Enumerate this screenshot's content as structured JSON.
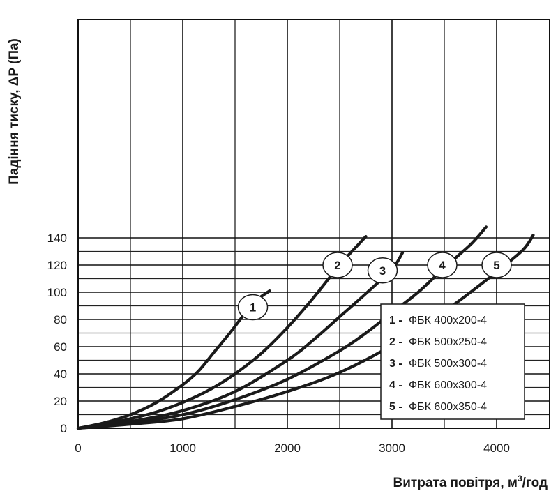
{
  "chart_data": {
    "type": "line",
    "title": "",
    "xlabel": "Витрата повітря, м",
    "xlabel_sup": "3",
    "xlabel_tail": "/год",
    "ylabel": "Падіння тиску, ΔP (Па)",
    "xlim": [
      0,
      4500
    ],
    "ylim": [
      0,
      150
    ],
    "x_ticks": [
      0,
      1000,
      2000,
      3000,
      4000
    ],
    "x_tick_labels": [
      "0",
      "1000",
      "2000",
      "3000",
      "4000"
    ],
    "y_ticks": [
      0,
      20,
      40,
      60,
      80,
      100,
      120,
      140
    ],
    "y_tick_labels": [
      "0",
      "20",
      "40",
      "60",
      "80",
      "100",
      "120",
      "140"
    ],
    "grid": true,
    "legend_position": "bottom-right",
    "series": [
      {
        "name": "1",
        "legend_prefix": "1 -",
        "legend_text": "ФБК 400x200-4",
        "x": [
          0,
          250,
          500,
          750,
          1000,
          1150,
          1300,
          1450,
          1600,
          1720,
          1830
        ],
        "y": [
          0,
          4,
          10,
          19,
          32,
          42,
          56,
          70,
          85,
          95,
          101
        ]
      },
      {
        "name": "2",
        "legend_prefix": "2 -",
        "legend_text": "ФБК 500x250-4",
        "x": [
          0,
          250,
          500,
          750,
          1000,
          1250,
          1500,
          1750,
          2000,
          2250,
          2500,
          2750
        ],
        "y": [
          0,
          3,
          7,
          12,
          19,
          28,
          40,
          55,
          74,
          96,
          120,
          141
        ]
      },
      {
        "name": "3",
        "legend_prefix": "3 -",
        "legend_text": "ФБК 500x300-4",
        "x": [
          0,
          500,
          1000,
          1500,
          2000,
          2250,
          2500,
          2750,
          3000,
          3100
        ],
        "y": [
          0,
          5,
          13,
          27,
          50,
          65,
          82,
          99,
          117,
          129
        ]
      },
      {
        "name": "4",
        "legend_prefix": "4 -",
        "legend_text": "ФБК 600x300-4",
        "x": [
          0,
          500,
          1000,
          1500,
          2000,
          2500,
          2750,
          3000,
          3250,
          3500,
          3750,
          3900
        ],
        "y": [
          0,
          4,
          10,
          21,
          36,
          57,
          70,
          85,
          100,
          118,
          135,
          148
        ]
      },
      {
        "name": "5",
        "legend_prefix": "5 -",
        "legend_text": "ФБК 600x350-4",
        "x": [
          0,
          500,
          1000,
          1500,
          2000,
          2500,
          3000,
          3500,
          3750,
          4000,
          4250,
          4350
        ],
        "y": [
          0,
          3,
          7,
          16,
          27,
          41,
          61,
          86,
          100,
          115,
          131,
          142
        ]
      }
    ],
    "markers": [
      {
        "label": "1",
        "x": 1670,
        "y": 89
      },
      {
        "label": "2",
        "x": 2480,
        "y": 120
      },
      {
        "label": "3",
        "x": 2910,
        "y": 116
      },
      {
        "label": "4",
        "x": 3480,
        "y": 120
      },
      {
        "label": "5",
        "x": 4000,
        "y": 120
      }
    ]
  }
}
